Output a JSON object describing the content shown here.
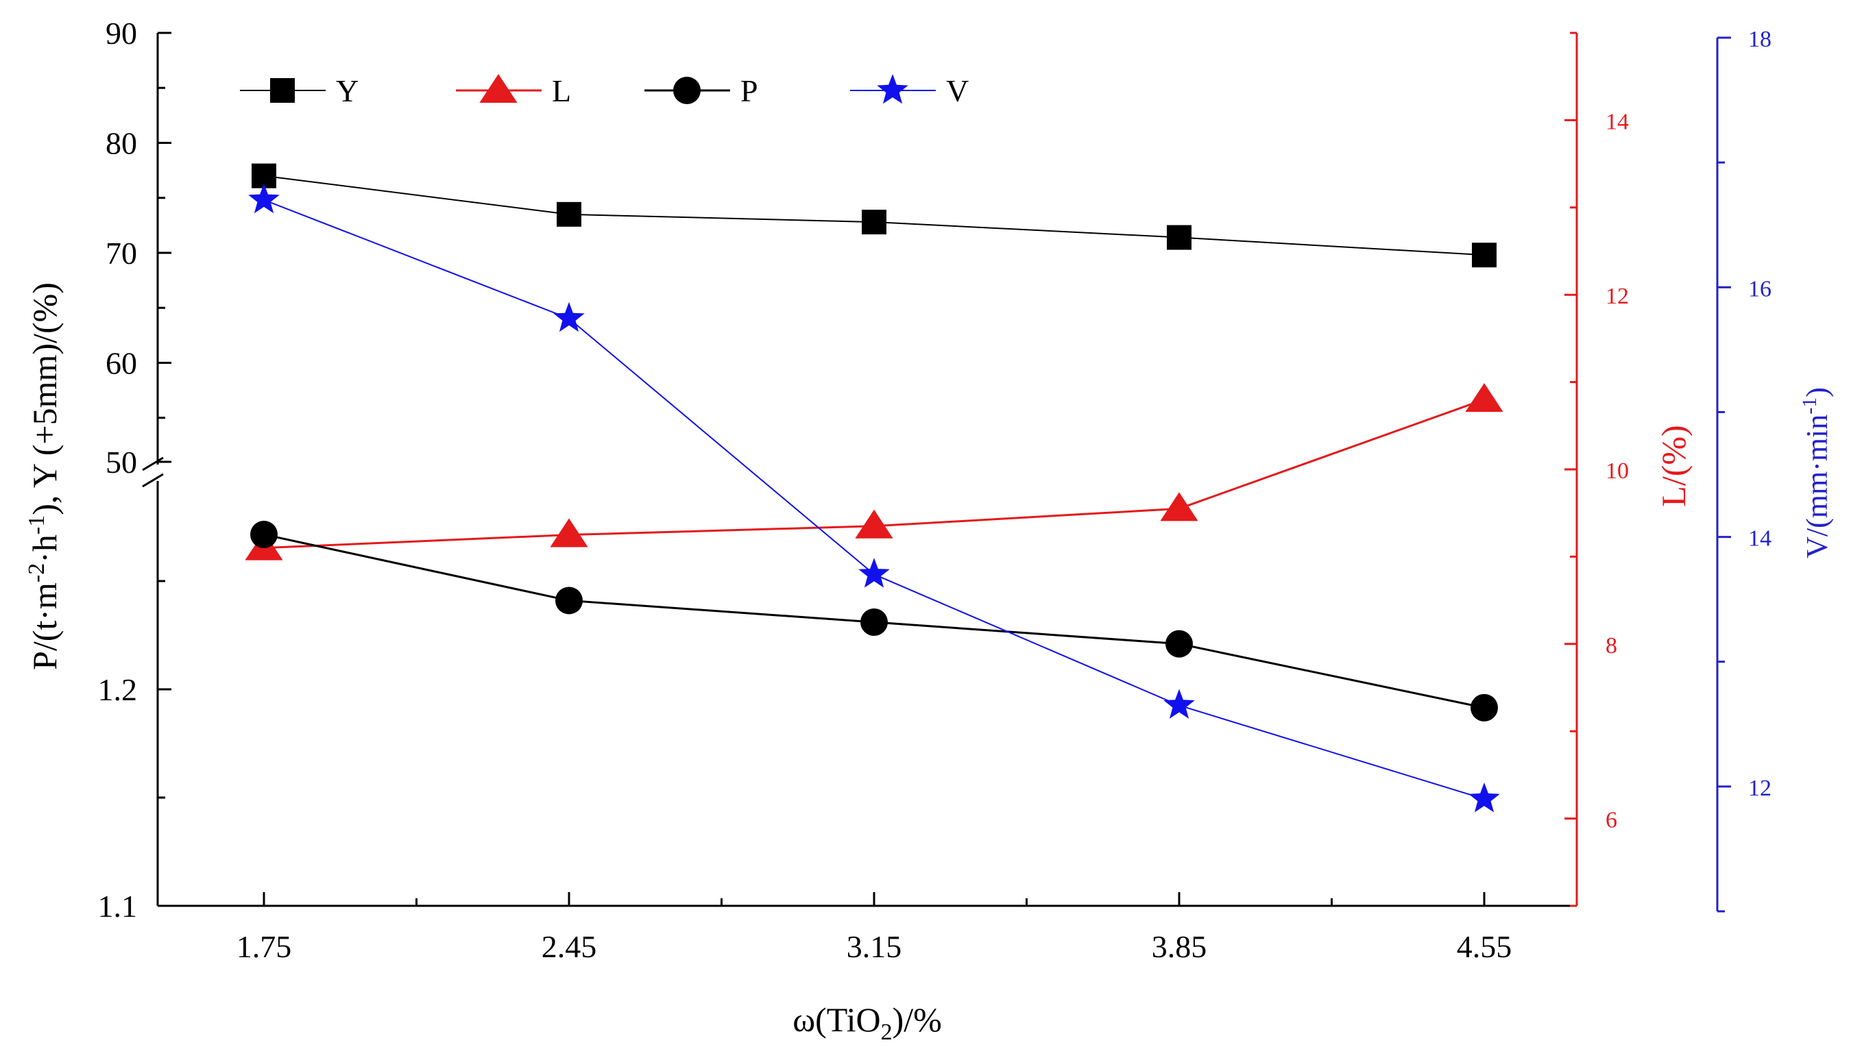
{
  "chart_data": {
    "type": "line",
    "x_axis": {
      "label_main": "ω(TiO",
      "label_sub": "2",
      "label_tail": ")/%",
      "ticks": [
        "1.75",
        "2.45",
        "3.15",
        "3.85",
        "4.55"
      ],
      "values": [
        1.75,
        2.45,
        3.15,
        3.85,
        4.55
      ]
    },
    "left_axis_upper": {
      "label": "Y (+5mm)/(%)",
      "range": [
        50,
        90
      ],
      "ticks": [
        "50",
        "60",
        "70",
        "80",
        "90"
      ]
    },
    "left_axis_lower": {
      "label_main": "P/(t·m",
      "label_sup1": "-2",
      "label_mid": "·h",
      "label_sup2": "-1",
      "label_tail": "),",
      "range": [
        1.1,
        1.3
      ],
      "ticks": [
        "1.1",
        "1.2"
      ]
    },
    "right_axis_L": {
      "label": "L/(%)",
      "range": [
        5,
        15
      ],
      "ticks": [
        "6",
        "8",
        "10",
        "12",
        "14"
      ],
      "color": "#e41a1c"
    },
    "right_axis_V": {
      "label_main": "V/(mm·min",
      "label_sup": "-1",
      "label_tail": ")",
      "range": [
        11,
        18
      ],
      "ticks": [
        "12",
        "14",
        "16",
        "18"
      ],
      "color": "#2222cc"
    },
    "series": [
      {
        "name": "Y",
        "marker": "square",
        "color": "#000000",
        "axis": "Y",
        "values": [
          77.0,
          73.5,
          72.8,
          71.4,
          69.8
        ]
      },
      {
        "name": "L",
        "marker": "triangle",
        "color": "#e41a1c",
        "axis": "L",
        "values": [
          9.1,
          9.25,
          9.35,
          9.55,
          10.8
        ]
      },
      {
        "name": "P",
        "marker": "circle",
        "color": "#000000",
        "axis": "P",
        "values": [
          1.2715,
          1.241,
          1.231,
          1.221,
          1.1915
        ]
      },
      {
        "name": "V",
        "marker": "star",
        "color": "#1111ee",
        "axis": "V",
        "values": [
          16.7,
          15.75,
          13.7,
          12.65,
          11.9
        ]
      }
    ],
    "legend": {
      "placement": "top-left",
      "entries": [
        "Y",
        "L",
        "P",
        "V"
      ]
    },
    "grid": false
  }
}
